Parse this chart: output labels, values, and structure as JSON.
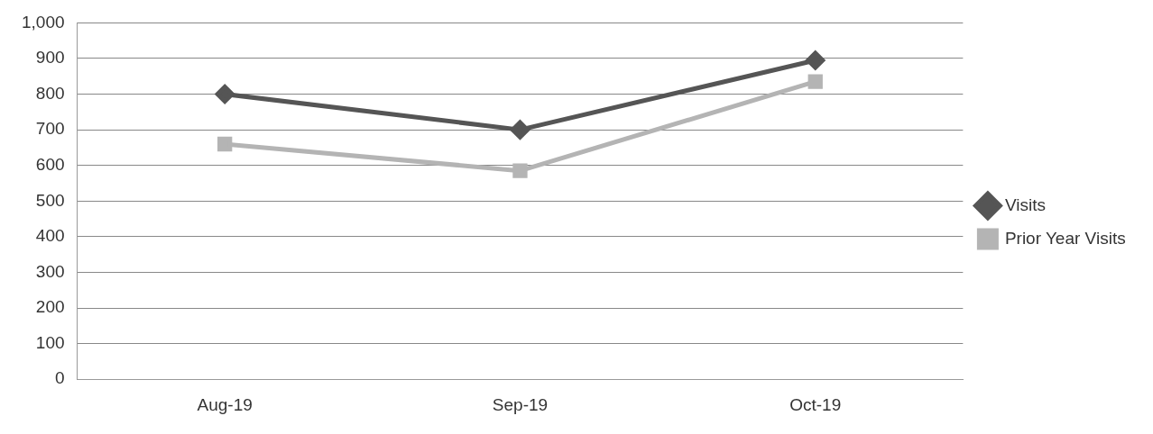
{
  "chart_data": {
    "type": "line",
    "categories": [
      "Aug-19",
      "Sep-19",
      "Oct-19"
    ],
    "series": [
      {
        "name": "Visits",
        "color": "#555555",
        "values": [
          800,
          700,
          895
        ],
        "marker": "diamond"
      },
      {
        "name": "Prior Year Visits",
        "color": "#b4b4b4",
        "values": [
          660,
          585,
          835
        ],
        "marker": "square"
      }
    ],
    "ylim": [
      0,
      1000
    ],
    "yticks": [
      0,
      100,
      200,
      300,
      400,
      500,
      600,
      700,
      800,
      900,
      {
        "value": 1000,
        "label": "1,000"
      }
    ],
    "grid": "y",
    "legend": "right",
    "line_style": "solid"
  }
}
